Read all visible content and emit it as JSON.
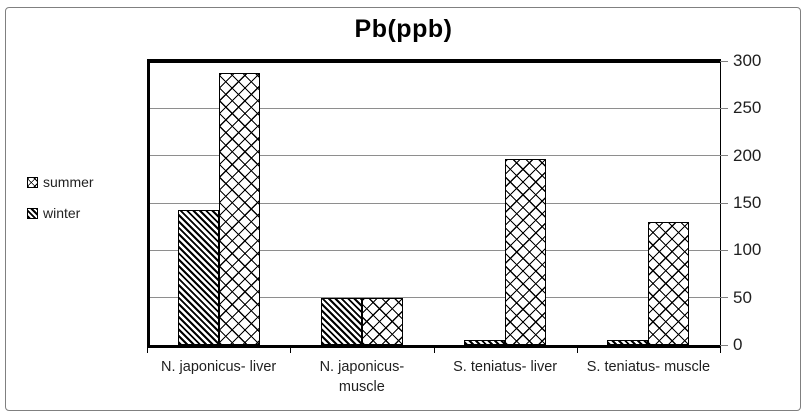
{
  "chart_data": {
    "type": "bar",
    "title": "Pb(ppb)",
    "categories": [
      {
        "label": "N. japonicus- liver",
        "lines": [
          "N. japonicus- liver"
        ]
      },
      {
        "label": "N. japonicus-muscle",
        "lines": [
          "N. japonicus-",
          "muscle"
        ]
      },
      {
        "label": "S. teniatus- liver",
        "lines": [
          "S. teniatus- liver"
        ]
      },
      {
        "label": "S. teniatus- muscle",
        "lines": [
          "S. teniatus- muscle"
        ]
      }
    ],
    "series": [
      {
        "name": "summer",
        "pattern": "diagonal-crosshatch",
        "values": [
          287,
          50,
          197,
          130
        ]
      },
      {
        "name": "winter",
        "pattern": "diagonal-stripes",
        "values": [
          143,
          50,
          5,
          5
        ]
      }
    ],
    "bar_draw_order": [
      "winter",
      "summer"
    ],
    "ylim": [
      0,
      300
    ],
    "yticks": [
      0,
      50,
      100,
      150,
      200,
      250,
      300
    ],
    "grid": "horizontal-gridlines",
    "legend": {
      "position": "left-outside",
      "items": [
        "summer",
        "winter"
      ]
    },
    "value_axis_side": "right",
    "colors": {
      "bar_fill": "#ffffff",
      "bar_stroke": "#000000",
      "pattern_ink": "#000000",
      "gridline": "#8e8e8e",
      "axis_line": "#000000",
      "tick": "#7f7f7f",
      "text": "#1f1f1f",
      "title_text": "#000000",
      "frame_border": "#808080",
      "background": "#ffffff"
    }
  }
}
